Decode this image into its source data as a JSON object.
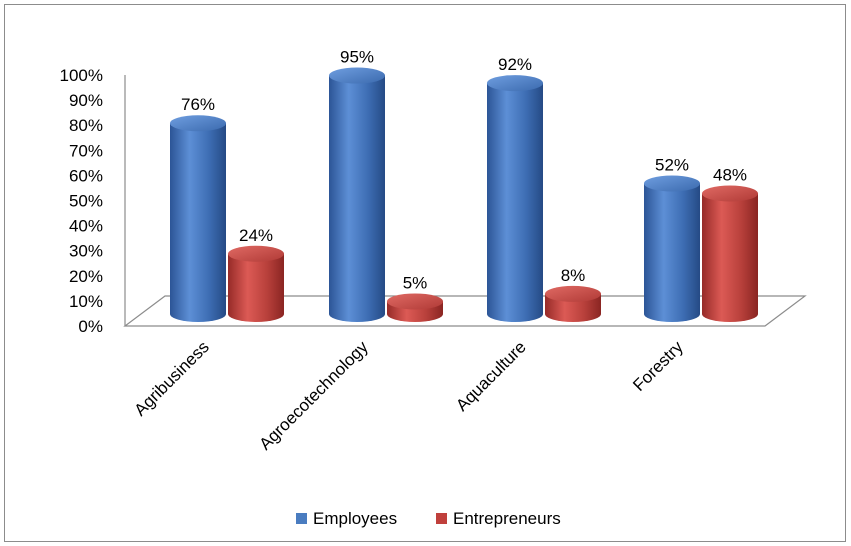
{
  "chart_data": {
    "type": "bar",
    "title": "",
    "xlabel": "",
    "ylabel": "",
    "categories": [
      "Agribusiness",
      "Agroecotechnology",
      "Aquaculture",
      "Forestry"
    ],
    "series": [
      {
        "name": "Employees",
        "values": [
          76,
          95,
          92,
          52
        ],
        "labels": [
          "76%",
          "95%",
          "92%",
          "52%"
        ]
      },
      {
        "name": "Entrepreneurs",
        "values": [
          24,
          5,
          8,
          48
        ],
        "labels": [
          "24%",
          "5%",
          "8%",
          "48%"
        ]
      }
    ],
    "y_ticks": [
      "0%",
      "10%",
      "20%",
      "30%",
      "40%",
      "50%",
      "60%",
      "70%",
      "80%",
      "90%",
      "100%"
    ],
    "ylim": [
      0,
      100
    ],
    "grid": false,
    "legend_position": "bottom",
    "bar_style": "3d-cylinder",
    "colors": {
      "Employees": "#4a7cc0",
      "Entrepreneurs": "#c0403c"
    }
  }
}
